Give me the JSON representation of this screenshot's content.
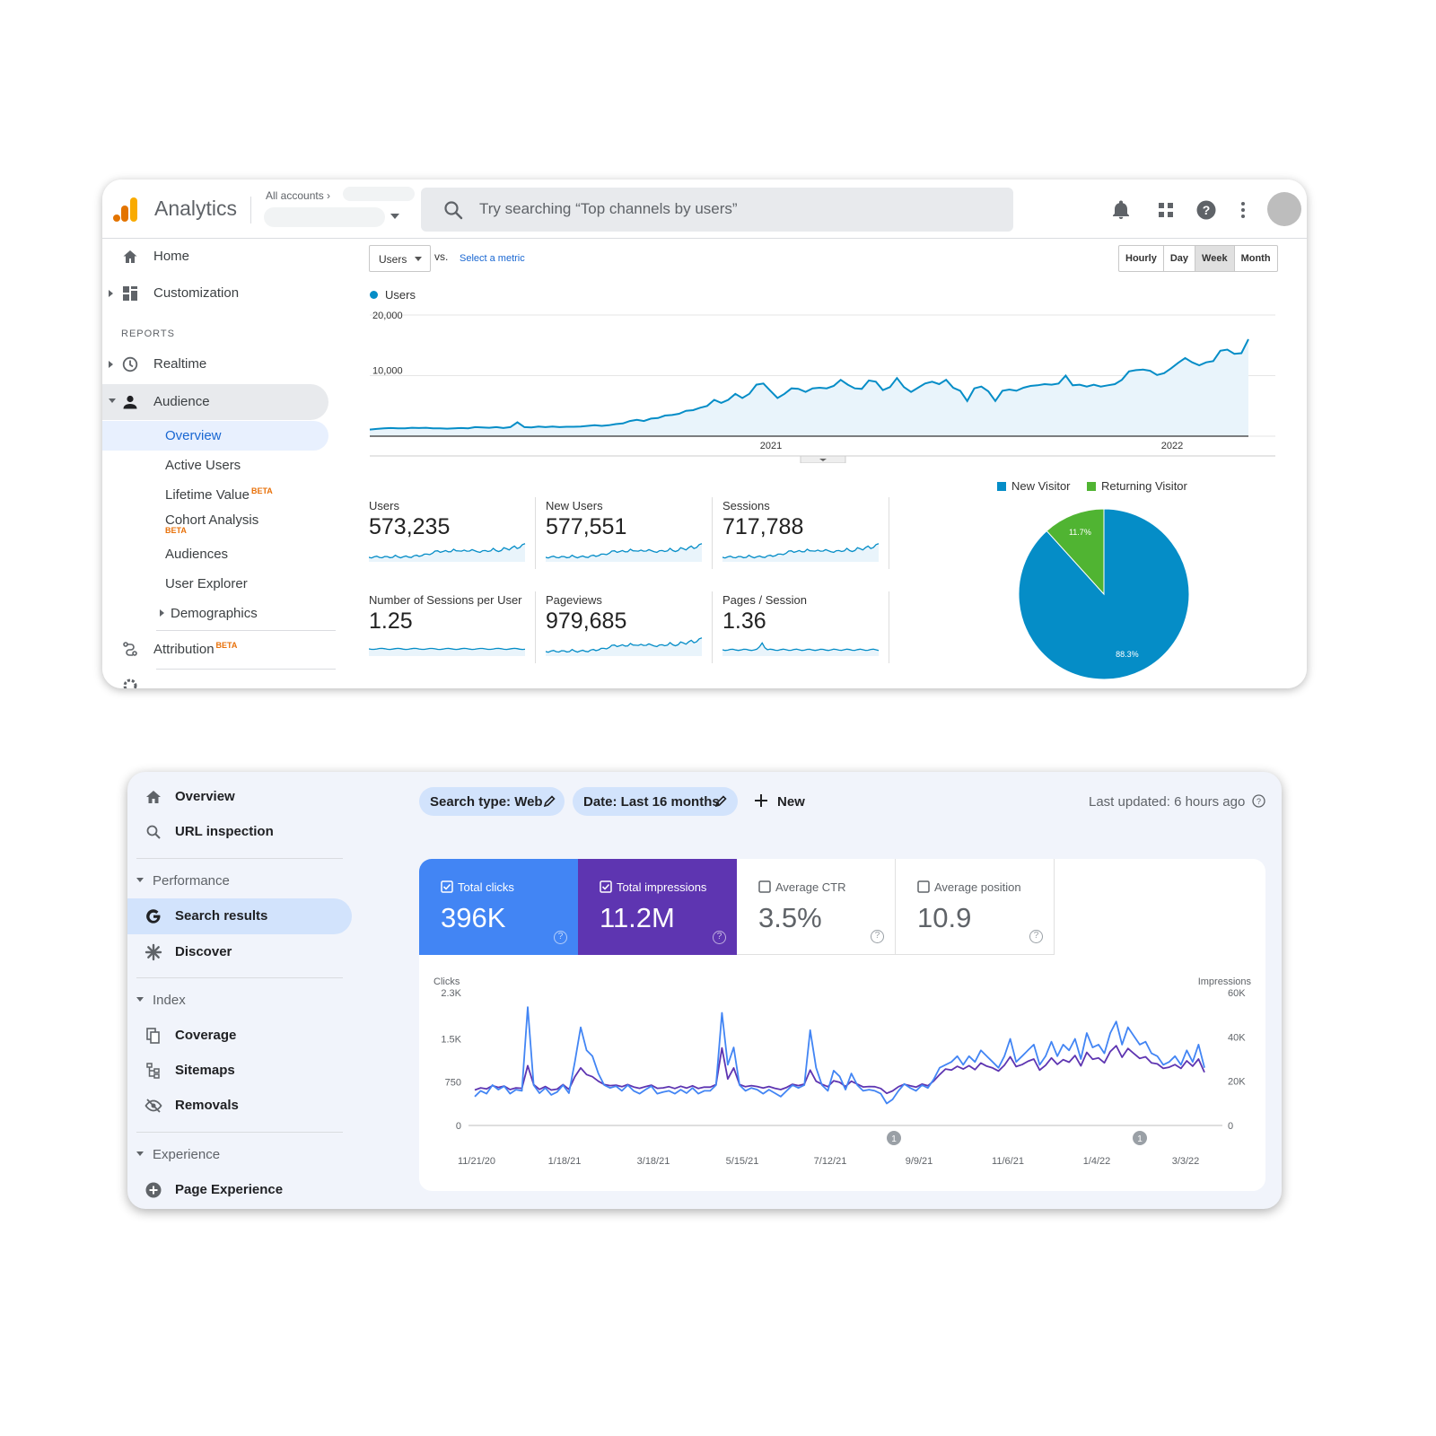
{
  "analytics": {
    "brand": "Analytics",
    "account_crumb": "All accounts",
    "search_placeholder": "Try searching “Top channels by users”",
    "nav": {
      "home": "Home",
      "customization": "Customization",
      "reports_header": "REPORTS",
      "realtime": "Realtime",
      "audience": "Audience",
      "audience_items": [
        "Overview",
        "Active Users",
        "Lifetime Value",
        "Cohort Analysis",
        "Audiences",
        "User Explorer",
        "Demographics"
      ],
      "beta": "BETA",
      "attribution": "Attribution"
    },
    "metric_select": "Users",
    "vs": "vs.",
    "select_metric": "Select a metric",
    "granularity": [
      "Hourly",
      "Day",
      "Week",
      "Month"
    ],
    "granularity_selected": "Week",
    "legend": "Users",
    "stats": [
      {
        "title": "Users",
        "value": "573,235"
      },
      {
        "title": "New Users",
        "value": "577,551"
      },
      {
        "title": "Sessions",
        "value": "717,788"
      },
      {
        "title": "Number of Sessions per User",
        "value": "1.25"
      },
      {
        "title": "Pageviews",
        "value": "979,685"
      },
      {
        "title": "Pages / Session",
        "value": "1.36"
      }
    ],
    "pie_legend": [
      "New Visitor",
      "Returning Visitor"
    ],
    "colors": {
      "series": "#058dc7",
      "returning": "#50b432"
    }
  },
  "search_console": {
    "nav": {
      "overview": "Overview",
      "url_inspection": "URL inspection",
      "performance": "Performance",
      "search_results": "Search results",
      "discover": "Discover",
      "index": "Index",
      "coverage": "Coverage",
      "sitemaps": "Sitemaps",
      "removals": "Removals",
      "experience": "Experience",
      "page_experience": "Page Experience"
    },
    "chips": [
      "Search type: Web",
      "Date: Last 16 months"
    ],
    "new_label": "New",
    "last_updated": "Last updated: 6 hours ago",
    "kpis": [
      {
        "title": "Total clicks",
        "value": "396K",
        "checked": true,
        "color": "#4285f4"
      },
      {
        "title": "Total impressions",
        "value": "11.2M",
        "checked": true,
        "color": "#5e35b1"
      },
      {
        "title": "Average CTR",
        "value": "3.5%",
        "checked": false
      },
      {
        "title": "Average position",
        "value": "10.9",
        "checked": false
      }
    ]
  },
  "chart_data": [
    {
      "type": "area",
      "title": "",
      "series": [
        {
          "name": "Users",
          "values": [
            1100,
            1200,
            1300,
            1350,
            1300,
            1300,
            1400,
            1350,
            1400,
            1300,
            1300,
            1250,
            1300,
            1350,
            1300,
            1500,
            1450,
            1400,
            1500,
            1350,
            1500,
            2300,
            1500,
            1450,
            1600,
            1500,
            1600,
            1500,
            1550,
            1550,
            1600,
            1700,
            1800,
            1700,
            1800,
            2000,
            2100,
            2500,
            2700,
            2500,
            2900,
            3000,
            3400,
            3500,
            3700,
            4200,
            4300,
            4700,
            5000,
            6000,
            5500,
            6000,
            7000,
            6300,
            7000,
            8500,
            8700,
            7500,
            6300,
            7000,
            7900,
            7800,
            7300,
            7900,
            8000,
            7900,
            8300,
            9300,
            8500,
            7900,
            7800,
            9200,
            9000,
            7600,
            8100,
            9600,
            8100,
            7300,
            8000,
            8700,
            9000,
            8600,
            9300,
            8000,
            7500,
            5800,
            7900,
            8200,
            7400,
            5800,
            7500,
            7700,
            7500,
            8000,
            8300,
            8400,
            8600,
            8500,
            8700,
            10000,
            8400,
            8500,
            8200,
            8500,
            8200,
            8400,
            8600,
            9300,
            10700,
            10900,
            11000,
            10800,
            10100,
            10400,
            11200,
            12100,
            12900,
            12200,
            11700,
            12200,
            12400,
            14100,
            14300,
            13600,
            13700,
            16000
          ]
        }
      ],
      "x_ticks": [
        "2021",
        "2022"
      ],
      "y_ticks": [
        "10,000",
        "20,000"
      ],
      "ylim": [
        0,
        20000
      ],
      "legend": "top-left"
    },
    {
      "type": "pie",
      "categories": [
        "New Visitor",
        "Returning Visitor"
      ],
      "values": [
        88.3,
        11.7
      ],
      "labels": [
        "88.3%",
        "11.7%"
      ],
      "legend": "top"
    },
    {
      "type": "line",
      "xlabel": "",
      "y_left_label": "Clicks",
      "y_right_label": "Impressions",
      "x_ticks": [
        "11/21/20",
        "1/18/21",
        "3/18/21",
        "5/15/21",
        "7/12/21",
        "9/9/21",
        "11/6/21",
        "1/4/22",
        "3/3/22"
      ],
      "y_left_ticks": [
        "0",
        "750",
        "1.5K",
        "2.3K"
      ],
      "y_right_ticks": [
        "0",
        "20K",
        "40K",
        "60K"
      ],
      "ylim_left": [
        0,
        2300
      ],
      "ylim_right": [
        0,
        60000
      ],
      "annotations": [
        "1",
        "1"
      ],
      "series": [
        {
          "name": "Clicks",
          "values": [
            500,
            600,
            550,
            700,
            620,
            680,
            550,
            620,
            600,
            2050,
            700,
            560,
            650,
            530,
            580,
            700,
            560,
            1100,
            1700,
            1300,
            1200,
            900,
            700,
            650,
            680,
            600,
            700,
            600,
            550,
            620,
            680,
            550,
            580,
            600,
            550,
            620,
            560,
            650,
            550,
            600,
            600,
            700,
            1950,
            1050,
            1350,
            700,
            600,
            650,
            620,
            550,
            620,
            560,
            500,
            600,
            700,
            650,
            700,
            1650,
            1000,
            700,
            600,
            950,
            850,
            620,
            900,
            700,
            600,
            620,
            600,
            550,
            380,
            450,
            600,
            720,
            650,
            600,
            700,
            650,
            800,
            1000,
            1050,
            1100,
            1200,
            1050,
            1200,
            1100,
            1300,
            1200,
            1100,
            1000,
            1200,
            1500,
            1100,
            1200,
            1300,
            1400,
            1050,
            1200,
            1450,
            1200,
            1400,
            1300,
            1500,
            1150,
            1600,
            1350,
            1400,
            1250,
            1600,
            1800,
            1400,
            1700,
            1550,
            1400,
            1450,
            1250,
            1200,
            1050,
            1100,
            1200,
            1050,
            1300,
            1100,
            1400,
            1000
          ]
        },
        {
          "name": "Impressions",
          "values": [
            16000,
            17000,
            16500,
            18000,
            17200,
            17800,
            16200,
            17000,
            16800,
            27000,
            18500,
            16300,
            17600,
            16000,
            16400,
            18500,
            16300,
            22000,
            26000,
            23000,
            22000,
            20000,
            18500,
            18000,
            18200,
            17500,
            18500,
            17400,
            16800,
            17500,
            18200,
            16800,
            17000,
            17500,
            16700,
            17700,
            16900,
            17900,
            16700,
            17300,
            17300,
            18500,
            35000,
            21000,
            26000,
            18500,
            17500,
            18000,
            17600,
            16900,
            17600,
            16800,
            16200,
            17200,
            18600,
            18000,
            18700,
            25000,
            20000,
            18600,
            17500,
            20200,
            19500,
            17600,
            20000,
            18700,
            17400,
            17600,
            17500,
            16700,
            14500,
            15600,
            17500,
            18600,
            17900,
            17300,
            18700,
            17900,
            20100,
            23000,
            25500,
            25000,
            26700,
            25500,
            27000,
            25200,
            28200,
            26800,
            26000,
            24600,
            27200,
            31000,
            26600,
            27500,
            29000,
            30000,
            25000,
            27200,
            30500,
            27600,
            29700,
            28600,
            31600,
            26900,
            33000,
            29900,
            30500,
            28300,
            33400,
            36000,
            30800,
            34800,
            32500,
            30300,
            31000,
            28300,
            27800,
            25800,
            26300,
            27500,
            25800,
            29200,
            26800,
            30000,
            24000
          ]
        }
      ]
    }
  ]
}
